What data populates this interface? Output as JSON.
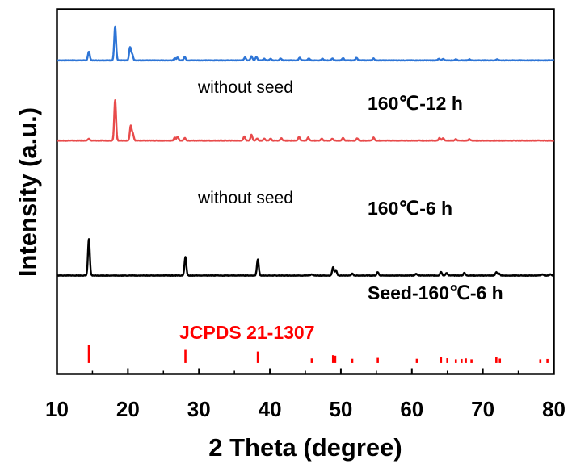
{
  "chart_data": {
    "type": "line",
    "xlabel": "2 Theta (degree)",
    "ylabel": "Intensity (a.u.)",
    "xlim": [
      10,
      80
    ],
    "xticks": [
      "10",
      "20",
      "30",
      "40",
      "50",
      "60",
      "70",
      "80"
    ],
    "yticks_shown": false,
    "grid": false,
    "series": [
      {
        "name": "160℃-12 h",
        "color": "#2e75d6",
        "baseline": 0.86,
        "scale": 0.105,
        "annotation": "without seed",
        "peaks": [
          [
            14.5,
            0.23
          ],
          [
            18.2,
            0.88
          ],
          [
            20.3,
            0.34
          ],
          [
            20.6,
            0.15
          ],
          [
            26.6,
            0.06
          ],
          [
            27.0,
            0.07
          ],
          [
            28.0,
            0.09
          ],
          [
            36.5,
            0.08
          ],
          [
            37.4,
            0.11
          ],
          [
            38.1,
            0.09
          ],
          [
            39.2,
            0.04
          ],
          [
            40.1,
            0.04
          ],
          [
            41.5,
            0.05
          ],
          [
            44.2,
            0.07
          ],
          [
            45.5,
            0.05
          ],
          [
            47.4,
            0.04
          ],
          [
            48.8,
            0.05
          ],
          [
            50.3,
            0.06
          ],
          [
            52.2,
            0.07
          ],
          [
            54.6,
            0.05
          ],
          [
            63.8,
            0.04
          ],
          [
            64.4,
            0.04
          ],
          [
            66.2,
            0.03
          ],
          [
            68.1,
            0.03
          ],
          [
            72.0,
            0.03
          ]
        ]
      },
      {
        "name": "160℃-6 h",
        "color": "#e84b4b",
        "baseline": 0.64,
        "scale": 0.105,
        "annotation": "without seed",
        "peaks": [
          [
            14.5,
            0.05
          ],
          [
            18.2,
            1.05
          ],
          [
            20.4,
            0.38
          ],
          [
            20.7,
            0.17
          ],
          [
            26.6,
            0.08
          ],
          [
            27.0,
            0.1
          ],
          [
            28.0,
            0.07
          ],
          [
            36.4,
            0.11
          ],
          [
            37.4,
            0.15
          ],
          [
            38.2,
            0.05
          ],
          [
            39.2,
            0.05
          ],
          [
            40.1,
            0.05
          ],
          [
            41.6,
            0.06
          ],
          [
            44.1,
            0.1
          ],
          [
            45.4,
            0.08
          ],
          [
            47.3,
            0.05
          ],
          [
            48.8,
            0.05
          ],
          [
            50.3,
            0.07
          ],
          [
            52.3,
            0.06
          ],
          [
            54.6,
            0.08
          ],
          [
            63.9,
            0.07
          ],
          [
            64.4,
            0.06
          ],
          [
            66.2,
            0.04
          ],
          [
            68.1,
            0.04
          ]
        ]
      },
      {
        "name": "Seed-160℃-6 h",
        "color": "#000000",
        "baseline": 0.27,
        "scale": 0.105,
        "peaks": [
          [
            14.5,
            0.95
          ],
          [
            28.1,
            0.48
          ],
          [
            38.3,
            0.42
          ],
          [
            45.9,
            0.03
          ],
          [
            48.9,
            0.22
          ],
          [
            49.3,
            0.14
          ],
          [
            51.6,
            0.05
          ],
          [
            55.2,
            0.09
          ],
          [
            60.6,
            0.05
          ],
          [
            64.1,
            0.1
          ],
          [
            64.9,
            0.07
          ],
          [
            67.4,
            0.07
          ],
          [
            71.9,
            0.09
          ],
          [
            72.3,
            0.05
          ],
          [
            78.4,
            0.03
          ],
          [
            79.5,
            0.03
          ]
        ]
      }
    ],
    "reference": {
      "name": "JCPDS 21-1307",
      "color": "#ff0000",
      "baseline": 0.03,
      "scale": 0.105,
      "lines": [
        [
          14.5,
          1.0
        ],
        [
          28.1,
          0.72
        ],
        [
          38.3,
          0.63
        ],
        [
          45.9,
          0.25
        ],
        [
          48.9,
          0.43
        ],
        [
          49.2,
          0.4
        ],
        [
          51.6,
          0.23
        ],
        [
          55.2,
          0.28
        ],
        [
          60.7,
          0.23
        ],
        [
          64.1,
          0.32
        ],
        [
          65.0,
          0.26
        ],
        [
          66.2,
          0.2
        ],
        [
          67.0,
          0.22
        ],
        [
          67.6,
          0.25
        ],
        [
          68.4,
          0.2
        ],
        [
          71.9,
          0.33
        ],
        [
          72.4,
          0.24
        ],
        [
          78.1,
          0.2
        ],
        [
          79.1,
          0.22
        ]
      ]
    }
  }
}
